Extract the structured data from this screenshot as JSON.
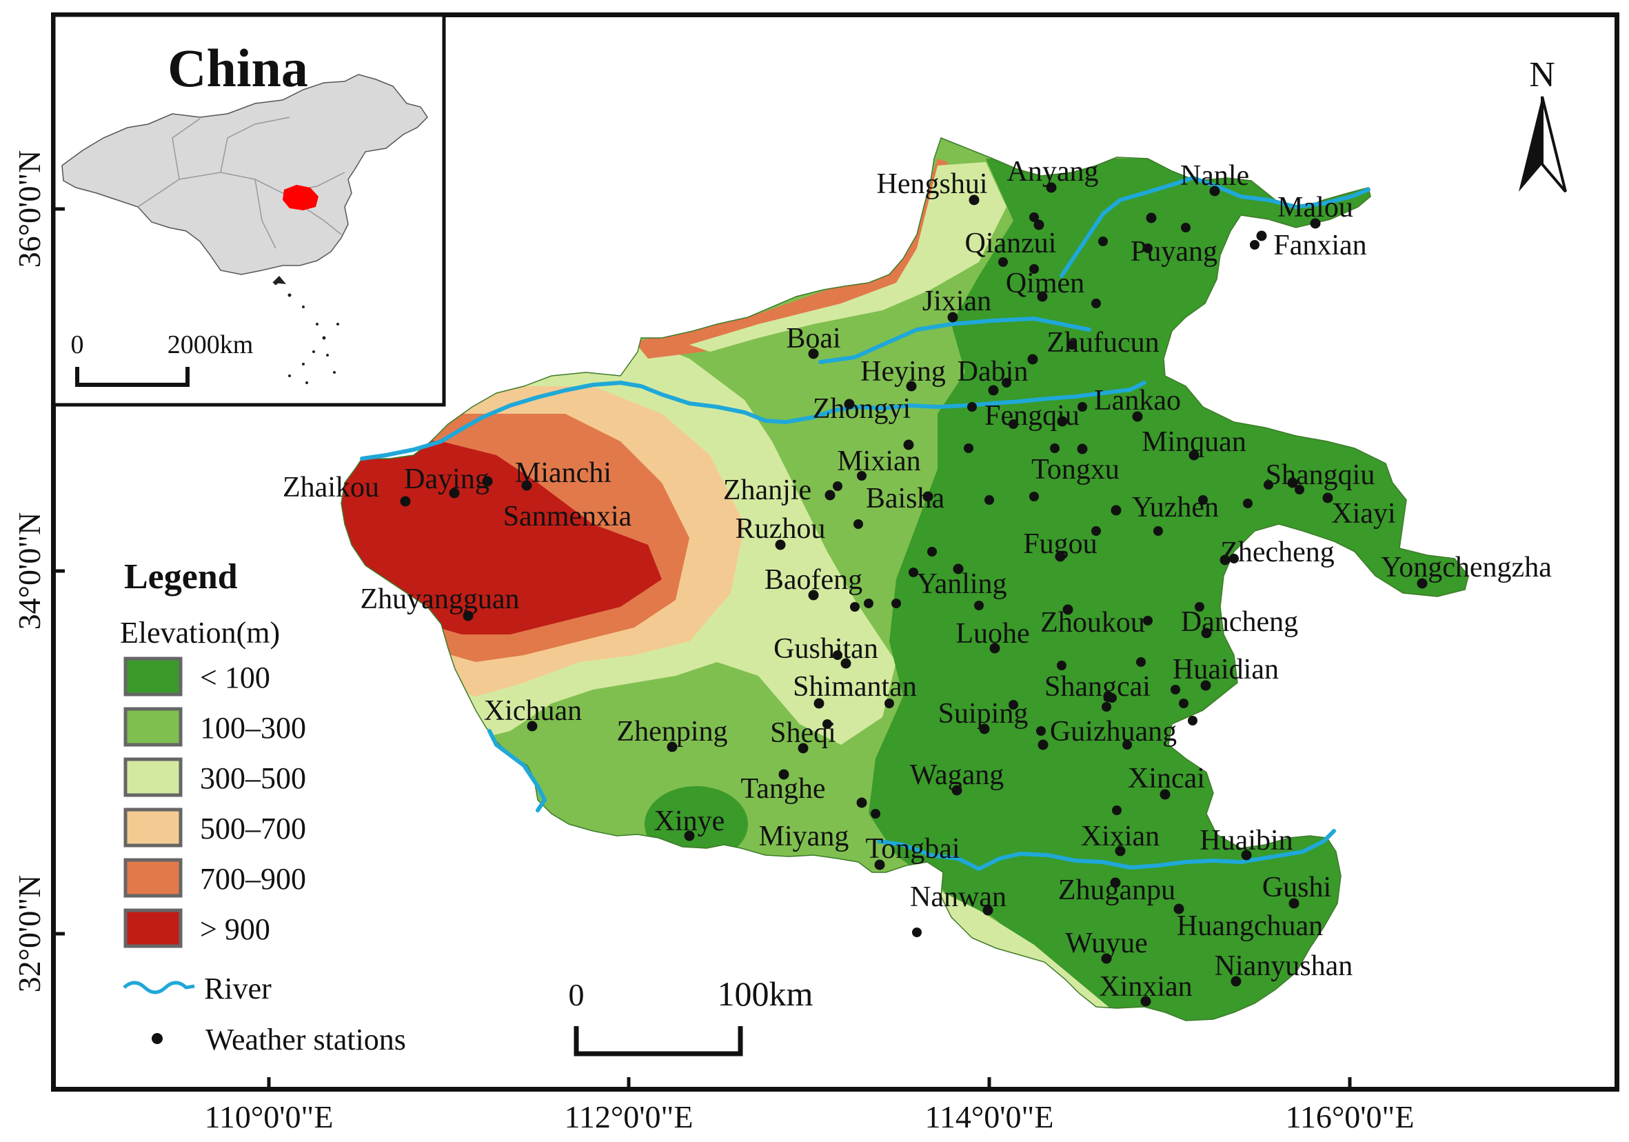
{
  "inset": {
    "title": "China",
    "scale_zero": "0",
    "scale_label": "2000km",
    "land_color": "#d9d9d9",
    "highlight_color": "#ff0000"
  },
  "north_arrow": {
    "label": "N"
  },
  "legend": {
    "title": "Legend",
    "subtitle": "Elevation(m)",
    "classes": [
      {
        "label": "< 100",
        "color": "#3a9a2a"
      },
      {
        "label": "100–300",
        "color": "#7fbf4f"
      },
      {
        "label": "300–500",
        "color": "#d4e9a0"
      },
      {
        "label": "500–700",
        "color": "#f3cb92"
      },
      {
        "label": "700–900",
        "color": "#e2794b"
      },
      {
        "label": "> 900",
        "color": "#c01d16"
      }
    ],
    "river_label": "River",
    "river_color": "#1fa8d8",
    "stations_label": "Weather stations"
  },
  "scale_bar": {
    "zero": "0",
    "label": "100km"
  },
  "axes": {
    "lat_ticks": [
      "36°0'0\"N",
      "34°0'0\"N",
      "32°0'0\"N"
    ],
    "lon_ticks": [
      "110°0'0\"E",
      "112°0'0\"E",
      "114°0'0\"E",
      "116°0'0\"E"
    ]
  },
  "stations": [
    "Hengshui",
    "Anyang",
    "Nanle",
    "Malou",
    "Qianzui",
    "Puyang",
    "Fanxian",
    "Qimen",
    "Jixian",
    "Boai",
    "Zhufucun",
    "Heying",
    "Dabin",
    "Zhongyi",
    "Fengqiu",
    "Lankao",
    "Mixian",
    "Minquan",
    "Tongxu",
    "Shangqiu",
    "Zhaikou",
    "Daying",
    "Mianchi",
    "Zhanjie",
    "Baisha",
    "Yuzhen",
    "Xiayi",
    "Sanmenxia",
    "Ruzhou",
    "Fugou",
    "Zhecheng",
    "Yongchengzha",
    "Baofeng",
    "Yanling",
    "Zhuyangguan",
    "Zhoukou",
    "Dancheng",
    "Luohe",
    "Gushitan",
    "Huaidian",
    "Shimantan",
    "Shangcai",
    "Xichuan",
    "Zhenping",
    "Sheqi",
    "Suiping",
    "Guizhuang",
    "Wagang",
    "Xincai",
    "Tanghe",
    "Xinye",
    "Miyang",
    "Tongbai",
    "Xixian",
    "Huaibin",
    "Gushi",
    "Nanwan",
    "Zhuganpu",
    "Huangchuan",
    "Wuyue",
    "Nianyushan",
    "Xinxian"
  ]
}
